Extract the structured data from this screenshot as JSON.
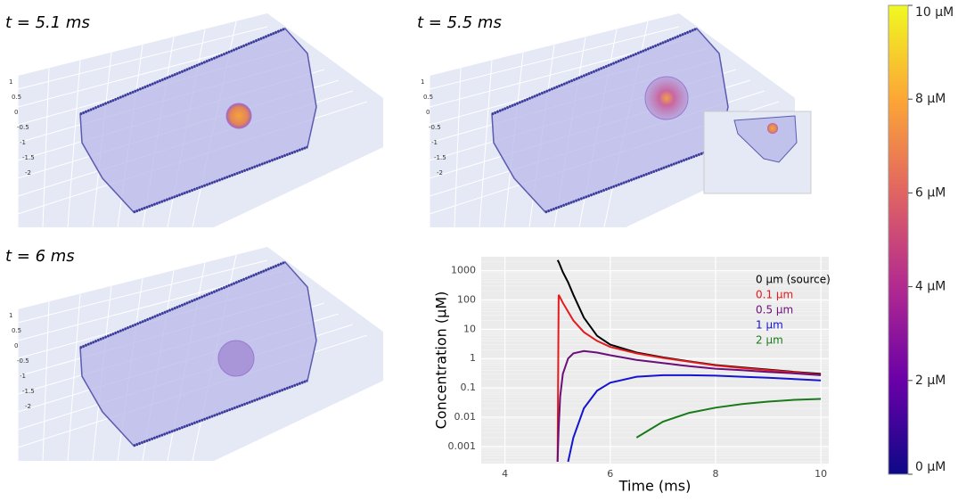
{
  "panels": [
    {
      "time_label": "t = 5.1 ms",
      "zticks": [
        "1",
        "0.5",
        "0",
        "-0.5",
        "-1",
        "-1.5",
        "-2"
      ]
    },
    {
      "time_label": "t = 5.5 ms",
      "zticks": [
        "1",
        "0.5",
        "0",
        "-0.5",
        "-1",
        "-1.5",
        "-2"
      ]
    },
    {
      "time_label": "t = 6 ms",
      "zticks": [
        "1",
        "0.5",
        "0",
        "-0.5",
        "-1",
        "-1.5",
        "-2"
      ]
    }
  ],
  "colorbar": {
    "range": [
      0,
      10
    ],
    "ticks": [
      {
        "value": 0,
        "label": "0 µM"
      },
      {
        "value": 2,
        "label": "2 µM"
      },
      {
        "value": 4,
        "label": "4 µM"
      },
      {
        "value": 6,
        "label": "6 µM"
      },
      {
        "value": 8,
        "label": "8 µM"
      },
      {
        "value": 10,
        "label": "10 µM"
      }
    ]
  },
  "chart_data": {
    "type": "line",
    "x_label": "Time (ms)",
    "y_label": "Concentration (µM)",
    "x": [
      5,
      5.02,
      5.05,
      5.1,
      5.2,
      5.3,
      5.5,
      5.75,
      6,
      6.5,
      7,
      7.5,
      8,
      8.5,
      9,
      9.5,
      10
    ],
    "series": [
      {
        "name": "0 µm (source)",
        "color": "#000000",
        "values": [
          2300,
          2000,
          1500,
          900,
          400,
          150,
          25,
          6,
          3,
          1.6,
          1.1,
          0.8,
          0.6,
          0.5,
          0.42,
          0.35,
          0.3
        ]
      },
      {
        "name": "0.1 µm",
        "color": "#e41a1c",
        "values": [
          0.0003,
          150,
          120,
          80,
          40,
          20,
          8,
          4,
          2.5,
          1.5,
          1.05,
          0.78,
          0.58,
          0.48,
          0.4,
          0.34,
          0.28
        ]
      },
      {
        "name": "0.5 µm",
        "color": "#6a0f7a",
        "values": [
          0.0003,
          0.004,
          0.05,
          0.3,
          1,
          1.5,
          1.8,
          1.6,
          1.3,
          0.9,
          0.7,
          0.55,
          0.45,
          0.4,
          0.35,
          0.31,
          0.27
        ]
      },
      {
        "name": "1 µm",
        "color": "#1414d2",
        "values": [
          null,
          null,
          null,
          null,
          0.0003,
          0.002,
          0.02,
          0.08,
          0.15,
          0.24,
          0.27,
          0.27,
          0.26,
          0.24,
          0.22,
          0.2,
          0.18
        ]
      },
      {
        "name": "2 µm",
        "color": "#1a7a1a",
        "values": [
          null,
          null,
          null,
          null,
          null,
          null,
          null,
          null,
          null,
          0.002,
          0.007,
          0.014,
          0.021,
          0.028,
          0.034,
          0.039,
          0.042
        ]
      }
    ],
    "xlim": [
      3.55,
      10.15
    ],
    "xticks": [
      4,
      6,
      8,
      10
    ],
    "ylim": [
      0.00026,
      3000
    ],
    "log_y": true,
    "yticks": [
      0.001,
      0.01,
      0.1,
      1,
      10,
      100,
      1000
    ],
    "grid": true
  }
}
